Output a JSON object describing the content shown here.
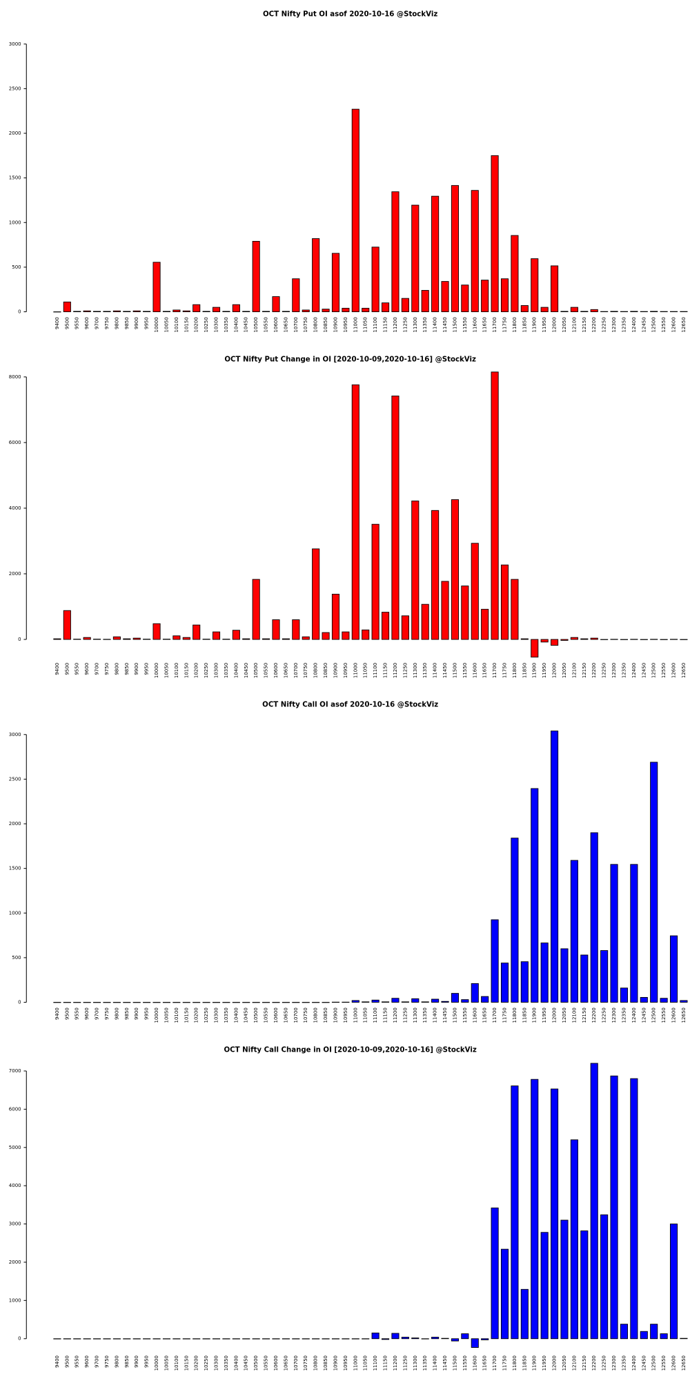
{
  "chart_data": [
    {
      "type": "bar",
      "title": "OCT Nifty Put OI asof 2020-10-16 @StockViz",
      "categories": [
        "9400",
        "9500",
        "9550",
        "9600",
        "9700",
        "9750",
        "9800",
        "9850",
        "9900",
        "9950",
        "10000",
        "10050",
        "10100",
        "10150",
        "10200",
        "10250",
        "10300",
        "10350",
        "10400",
        "10450",
        "10500",
        "10550",
        "10600",
        "10650",
        "10700",
        "10750",
        "10800",
        "10850",
        "10900",
        "10950",
        "11000",
        "11050",
        "11100",
        "11150",
        "11200",
        "11250",
        "11300",
        "11350",
        "11400",
        "11450",
        "11500",
        "11550",
        "11600",
        "11650",
        "11700",
        "11750",
        "11800",
        "11850",
        "11900",
        "11950",
        "12000",
        "12050",
        "12100",
        "12150",
        "12200",
        "12250",
        "12300",
        "12350",
        "12400",
        "12450",
        "12500",
        "12550",
        "12600",
        "12650"
      ],
      "values": [
        0,
        110,
        5,
        10,
        5,
        5,
        10,
        5,
        10,
        5,
        555,
        5,
        20,
        10,
        80,
        5,
        50,
        5,
        80,
        5,
        790,
        5,
        170,
        5,
        370,
        20,
        820,
        30,
        655,
        40,
        2270,
        40,
        725,
        100,
        1345,
        150,
        1195,
        240,
        1295,
        340,
        1415,
        300,
        1360,
        355,
        1750,
        370,
        855,
        70,
        595,
        50,
        515,
        5,
        50,
        5,
        25,
        3,
        5,
        3,
        5,
        3,
        5,
        3,
        3,
        3
      ],
      "color": "#ff0000",
      "ylim": [
        0,
        3000
      ],
      "yticks": [
        0,
        500,
        1000,
        1500,
        2000,
        2500,
        3000
      ]
    },
    {
      "type": "bar",
      "title": "OCT Nifty Put Change in OI [2020-10-09,2020-10-16] @StockViz",
      "categories": [
        "9400",
        "9500",
        "9550",
        "9600",
        "9700",
        "9750",
        "9800",
        "9850",
        "9900",
        "9950",
        "10000",
        "10050",
        "10100",
        "10150",
        "10200",
        "10250",
        "10300",
        "10350",
        "10400",
        "10450",
        "10500",
        "10550",
        "10600",
        "10650",
        "10700",
        "10750",
        "10800",
        "10850",
        "10900",
        "10950",
        "11000",
        "11050",
        "11100",
        "11150",
        "11200",
        "11250",
        "11300",
        "11350",
        "11400",
        "11450",
        "11500",
        "11550",
        "11600",
        "11650",
        "11700",
        "11750",
        "11800",
        "11850",
        "11900",
        "11950",
        "12000",
        "12050",
        "12100",
        "12150",
        "12200",
        "12250",
        "12300",
        "12350",
        "12400",
        "12450",
        "12500",
        "12550",
        "12600",
        "12650"
      ],
      "values": [
        20,
        880,
        10,
        60,
        10,
        5,
        80,
        20,
        40,
        10,
        480,
        10,
        110,
        60,
        440,
        10,
        230,
        10,
        280,
        20,
        1830,
        20,
        600,
        20,
        600,
        80,
        2760,
        210,
        1380,
        230,
        7760,
        290,
        3510,
        830,
        7420,
        720,
        4220,
        1070,
        3930,
        1770,
        4260,
        1630,
        2930,
        920,
        8150,
        2270,
        1830,
        20,
        -540,
        -80,
        -180,
        -30,
        60,
        20,
        40,
        -5,
        5,
        -5,
        5,
        -5,
        5,
        -5,
        5,
        -5
      ],
      "color": "#ff0000",
      "ylim": [
        -550,
        8200
      ],
      "yticks": [
        0,
        2000,
        4000,
        6000,
        8000
      ]
    },
    {
      "type": "bar",
      "title": "OCT Nifty Call OI asof 2020-10-16 @StockViz",
      "categories": [
        "9400",
        "9500",
        "9550",
        "9600",
        "9700",
        "9750",
        "9800",
        "9850",
        "9900",
        "9950",
        "10000",
        "10050",
        "10100",
        "10150",
        "10200",
        "10250",
        "10300",
        "10350",
        "10400",
        "10450",
        "10500",
        "10550",
        "10600",
        "10650",
        "10700",
        "10750",
        "10800",
        "10850",
        "10900",
        "10950",
        "11000",
        "11050",
        "11100",
        "11150",
        "11200",
        "11250",
        "11300",
        "11350",
        "11400",
        "11450",
        "11500",
        "11550",
        "11600",
        "11650",
        "11700",
        "11750",
        "11800",
        "11850",
        "11900",
        "11950",
        "12000",
        "12050",
        "12100",
        "12150",
        "12200",
        "12250",
        "12300",
        "12350",
        "12400",
        "12450",
        "12500",
        "12550",
        "12600",
        "12650"
      ],
      "values": [
        0,
        0,
        0,
        0,
        0,
        0,
        0,
        0,
        0,
        0,
        0,
        0,
        0,
        0,
        0,
        0,
        0,
        0,
        0,
        0,
        0,
        0,
        0,
        0,
        0,
        0,
        0,
        0,
        2,
        2,
        20,
        5,
        25,
        5,
        45,
        5,
        40,
        5,
        35,
        10,
        100,
        30,
        210,
        65,
        925,
        440,
        1840,
        455,
        2395,
        665,
        3040,
        600,
        1590,
        530,
        1900,
        580,
        1545,
        160,
        1545,
        55,
        2690,
        45,
        745,
        20
      ],
      "color": "#0000ff",
      "ylim": [
        0,
        3000
      ],
      "yticks": [
        0,
        500,
        1000,
        1500,
        2000,
        2500,
        3000
      ]
    },
    {
      "type": "bar",
      "title": "OCT Nifty Call Change in OI [2020-10-09,2020-10-16] @StockViz",
      "categories": [
        "9400",
        "9500",
        "9550",
        "9600",
        "9700",
        "9750",
        "9800",
        "9850",
        "9900",
        "9950",
        "10000",
        "10050",
        "10100",
        "10150",
        "10200",
        "10250",
        "10300",
        "10350",
        "10400",
        "10450",
        "10500",
        "10550",
        "10600",
        "10650",
        "10700",
        "10750",
        "10800",
        "10850",
        "10900",
        "10950",
        "11000",
        "11050",
        "11100",
        "11150",
        "11200",
        "11250",
        "11300",
        "11350",
        "11400",
        "11450",
        "11500",
        "11550",
        "11600",
        "11650",
        "11700",
        "11750",
        "11800",
        "11850",
        "11900",
        "11950",
        "12000",
        "12050",
        "12100",
        "12150",
        "12200",
        "12250",
        "12300",
        "12350",
        "12400",
        "12450",
        "12500",
        "12550",
        "12600",
        "12650"
      ],
      "values": [
        0,
        0,
        0,
        0,
        0,
        0,
        0,
        0,
        0,
        0,
        0,
        0,
        0,
        0,
        0,
        0,
        0,
        0,
        0,
        0,
        0,
        0,
        0,
        0,
        0,
        0,
        0,
        0,
        0,
        0,
        0,
        0,
        150,
        -20,
        140,
        40,
        20,
        -5,
        40,
        10,
        -60,
        130,
        -230,
        -30,
        3420,
        2340,
        6610,
        1290,
        6780,
        2780,
        6530,
        3100,
        5200,
        2820,
        7200,
        3240,
        6870,
        380,
        6800,
        190,
        380,
        130,
        3000,
        10
      ],
      "color": "#0000ff",
      "ylim": [
        -300,
        7200
      ],
      "yticks": [
        0,
        1000,
        2000,
        3000,
        4000,
        5000,
        6000,
        7000
      ]
    }
  ]
}
